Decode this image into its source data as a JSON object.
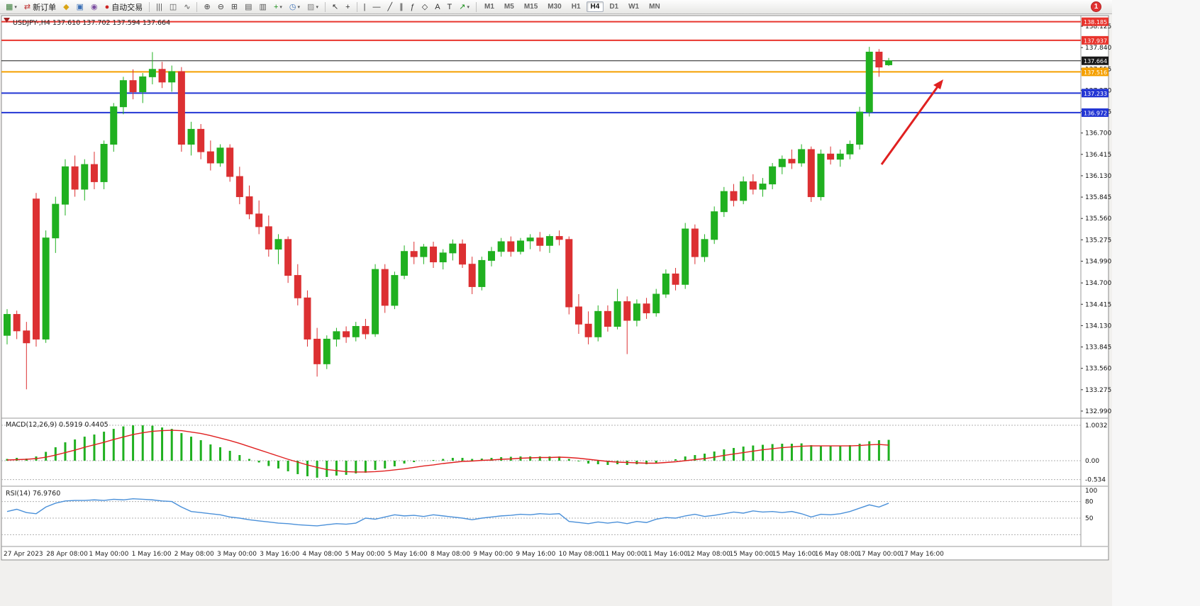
{
  "toolbar": {
    "groups": [
      {
        "items": [
          {
            "name": "new-chart",
            "glyph": "▦",
            "color": "#3a7d3a",
            "caret": true
          }
        ]
      },
      {
        "items": [
          {
            "name": "new-order",
            "glyph": "⇄",
            "color": "#c03333",
            "label": "新订单"
          }
        ]
      },
      {
        "items": [
          {
            "name": "metaeditor",
            "glyph": "◆",
            "color": "#d9a414"
          },
          {
            "name": "strategy-tester",
            "glyph": "▣",
            "color": "#3b6fb5"
          },
          {
            "name": "community",
            "glyph": "◉",
            "color": "#7a4da0"
          }
        ]
      },
      {
        "items": [
          {
            "name": "auto-trading",
            "glyph": "●",
            "color": "#cc2222",
            "label": "自动交易"
          }
        ]
      },
      {
        "sep": true,
        "items": [
          {
            "name": "bar-chart",
            "glyph": "|||",
            "color": "#555"
          },
          {
            "name": "candlestick-chart",
            "glyph": "◫",
            "color": "#555"
          },
          {
            "name": "line-chart",
            "glyph": "∿",
            "color": "#555"
          }
        ]
      },
      {
        "sep": true,
        "items": [
          {
            "name": "zoom-in",
            "glyph": "⊕",
            "color": "#444"
          },
          {
            "name": "zoom-out",
            "glyph": "⊖",
            "color": "#444"
          }
        ]
      },
      {
        "items": [
          {
            "name": "tile-windows",
            "glyph": "⊞",
            "color": "#444"
          }
        ]
      },
      {
        "items": [
          {
            "name": "auto-arrange",
            "glyph": "▤",
            "color": "#555"
          },
          {
            "name": "cascade",
            "glyph": "▥",
            "color": "#555"
          }
        ]
      },
      {
        "items": [
          {
            "name": "indicators",
            "glyph": "+",
            "color": "#1a8f1a",
            "caret": true
          },
          {
            "name": "periods",
            "glyph": "◷",
            "color": "#3b6fb5",
            "caret": true
          },
          {
            "name": "templates",
            "glyph": "▨",
            "color": "#888",
            "caret": true
          }
        ]
      },
      {
        "sep": true,
        "items": [
          {
            "name": "cursor",
            "glyph": "↖",
            "color": "#333"
          },
          {
            "name": "crosshair",
            "glyph": "+",
            "color": "#333"
          }
        ]
      },
      {
        "sep": true,
        "items": [
          {
            "name": "vertical-line",
            "glyph": "|",
            "color": "#333"
          },
          {
            "name": "horizontal-line",
            "glyph": "—",
            "color": "#333"
          },
          {
            "name": "trendline",
            "glyph": "╱",
            "color": "#333"
          },
          {
            "name": "channel",
            "glyph": "∥",
            "color": "#333"
          },
          {
            "name": "fibonacci",
            "glyph": "ƒ",
            "color": "#333"
          },
          {
            "name": "shapes",
            "glyph": "◇",
            "color": "#333"
          },
          {
            "name": "text",
            "glyph": "A",
            "color": "#333"
          },
          {
            "name": "text-label",
            "glyph": "T",
            "color": "#333"
          },
          {
            "name": "arrows",
            "glyph": "↗",
            "color": "#1a8f1a",
            "caret": true
          }
        ]
      }
    ],
    "timeframes": [
      "M1",
      "M5",
      "M15",
      "M30",
      "H1",
      "H4",
      "D1",
      "W1",
      "MN"
    ],
    "active_timeframe": "H4",
    "notification_badge": "1"
  },
  "chart": {
    "title": "USDJPY-,H4",
    "ohlc_text": "137.610 137.702 137.594 137.664",
    "price_axis": [
      "138.125",
      "137.840",
      "137.555",
      "137.270",
      "136.985",
      "136.700",
      "136.415",
      "136.130",
      "135.845",
      "135.560",
      "135.275",
      "134.990",
      "134.700",
      "134.415",
      "134.130",
      "133.845",
      "133.560",
      "133.275",
      "132.990"
    ],
    "hlines": [
      {
        "name": "resistance-line-upper",
        "price": 138.185,
        "label": "138.185",
        "color": "#e8352e",
        "width": 2
      },
      {
        "name": "resistance-line",
        "price": 137.937,
        "label": "137.937",
        "color": "#e8352e",
        "width": 2
      },
      {
        "name": "current-price-line",
        "price": 137.664,
        "label": "137.664",
        "color": "#1a1a1a",
        "width": 1
      },
      {
        "name": "orange-level-line",
        "price": 137.516,
        "label": "137.516",
        "color": "#f5a000",
        "width": 2
      },
      {
        "name": "support-line-1",
        "price": 137.233,
        "label": "137.233",
        "color": "#2336d4",
        "width": 2
      },
      {
        "name": "support-line-2",
        "price": 136.972,
        "label": "136.972",
        "color": "#2336d4",
        "width": 2
      }
    ],
    "colors": {
      "bull": "#20b020",
      "bear": "#dc3032",
      "macd_bar": "#20b020",
      "macd_signal": "#e02020",
      "rsi_line": "#4a90d9",
      "arrow": "#e02020"
    }
  },
  "chart_data": {
    "type": "candlestick",
    "symbol": "USDJPY-",
    "timeframe": "H4",
    "candles": [
      [
        134.0,
        134.35,
        133.88,
        134.28
      ],
      [
        134.28,
        134.33,
        133.95,
        134.06
      ],
      [
        134.06,
        134.18,
        133.28,
        133.9
      ],
      [
        135.82,
        135.9,
        133.85,
        133.95
      ],
      [
        133.95,
        135.4,
        133.9,
        135.3
      ],
      [
        135.3,
        135.85,
        135.1,
        135.75
      ],
      [
        135.75,
        136.35,
        135.6,
        136.25
      ],
      [
        136.25,
        136.4,
        135.85,
        135.95
      ],
      [
        135.95,
        136.35,
        135.8,
        136.28
      ],
      [
        136.28,
        136.45,
        135.95,
        136.05
      ],
      [
        136.05,
        136.6,
        135.95,
        136.55
      ],
      [
        136.55,
        137.1,
        136.45,
        137.05
      ],
      [
        137.05,
        137.45,
        136.95,
        137.4
      ],
      [
        137.4,
        137.55,
        137.15,
        137.25
      ],
      [
        137.25,
        137.5,
        137.1,
        137.45
      ],
      [
        137.45,
        137.78,
        137.35,
        137.55
      ],
      [
        137.55,
        137.65,
        137.3,
        137.38
      ],
      [
        137.38,
        137.6,
        137.25,
        137.52
      ],
      [
        137.52,
        137.58,
        136.45,
        136.55
      ],
      [
        136.55,
        136.85,
        136.4,
        136.75
      ],
      [
        136.75,
        136.82,
        136.35,
        136.45
      ],
      [
        136.45,
        136.6,
        136.2,
        136.3
      ],
      [
        136.3,
        136.55,
        136.25,
        136.5
      ],
      [
        136.5,
        136.55,
        136.05,
        136.12
      ],
      [
        136.12,
        136.25,
        135.75,
        135.85
      ],
      [
        135.85,
        136.0,
        135.55,
        135.62
      ],
      [
        135.62,
        135.8,
        135.35,
        135.45
      ],
      [
        135.45,
        135.6,
        135.05,
        135.15
      ],
      [
        135.15,
        135.35,
        134.95,
        135.28
      ],
      [
        135.28,
        135.32,
        134.7,
        134.8
      ],
      [
        134.8,
        134.95,
        134.4,
        134.5
      ],
      [
        134.5,
        134.6,
        133.85,
        133.95
      ],
      [
        133.95,
        134.1,
        133.45,
        133.62
      ],
      [
        133.62,
        134.0,
        133.55,
        133.95
      ],
      [
        133.95,
        134.1,
        133.85,
        134.05
      ],
      [
        134.05,
        134.12,
        133.9,
        133.98
      ],
      [
        133.98,
        134.18,
        133.92,
        134.12
      ],
      [
        134.12,
        134.22,
        133.95,
        134.02
      ],
      [
        134.02,
        134.95,
        133.98,
        134.88
      ],
      [
        134.88,
        134.95,
        134.3,
        134.4
      ],
      [
        134.4,
        134.85,
        134.35,
        134.8
      ],
      [
        134.8,
        135.2,
        134.75,
        135.12
      ],
      [
        135.12,
        135.25,
        134.95,
        135.05
      ],
      [
        135.05,
        135.22,
        134.95,
        135.18
      ],
      [
        135.18,
        135.25,
        134.9,
        134.98
      ],
      [
        134.98,
        135.15,
        134.88,
        135.1
      ],
      [
        135.1,
        135.28,
        135.0,
        135.22
      ],
      [
        135.22,
        135.28,
        134.9,
        134.95
      ],
      [
        134.95,
        135.05,
        134.55,
        134.65
      ],
      [
        134.65,
        135.05,
        134.6,
        135.0
      ],
      [
        135.0,
        135.18,
        134.92,
        135.12
      ],
      [
        135.12,
        135.3,
        135.05,
        135.25
      ],
      [
        135.25,
        135.32,
        135.05,
        135.12
      ],
      [
        135.12,
        135.3,
        135.08,
        135.26
      ],
      [
        135.26,
        135.35,
        135.15,
        135.3
      ],
      [
        135.3,
        135.38,
        135.12,
        135.2
      ],
      [
        135.2,
        135.35,
        135.1,
        135.32
      ],
      [
        135.32,
        135.4,
        135.2,
        135.28
      ],
      [
        135.28,
        135.32,
        134.28,
        134.38
      ],
      [
        134.38,
        134.55,
        134.02,
        134.15
      ],
      [
        134.15,
        134.32,
        133.88,
        133.98
      ],
      [
        133.98,
        134.4,
        133.92,
        134.32
      ],
      [
        134.32,
        134.4,
        134.05,
        134.12
      ],
      [
        134.12,
        134.62,
        134.08,
        134.45
      ],
      [
        134.45,
        134.52,
        133.75,
        134.2
      ],
      [
        134.2,
        134.48,
        134.12,
        134.42
      ],
      [
        134.42,
        134.5,
        134.22,
        134.3
      ],
      [
        134.3,
        134.62,
        134.25,
        134.55
      ],
      [
        134.55,
        134.88,
        134.5,
        134.82
      ],
      [
        134.82,
        134.9,
        134.6,
        134.68
      ],
      [
        134.68,
        135.5,
        134.62,
        135.42
      ],
      [
        135.42,
        135.48,
        134.95,
        135.05
      ],
      [
        135.05,
        135.35,
        134.98,
        135.28
      ],
      [
        135.28,
        135.72,
        135.22,
        135.65
      ],
      [
        135.65,
        135.98,
        135.58,
        135.92
      ],
      [
        135.92,
        136.02,
        135.72,
        135.8
      ],
      [
        135.8,
        136.12,
        135.75,
        136.05
      ],
      [
        136.05,
        136.15,
        135.88,
        135.95
      ],
      [
        135.95,
        136.1,
        135.85,
        136.02
      ],
      [
        136.02,
        136.3,
        135.95,
        136.25
      ],
      [
        136.25,
        136.4,
        136.15,
        136.35
      ],
      [
        136.35,
        136.48,
        136.22,
        136.3
      ],
      [
        136.3,
        136.55,
        136.25,
        136.48
      ],
      [
        136.48,
        136.52,
        135.78,
        135.85
      ],
      [
        135.85,
        136.48,
        135.8,
        136.42
      ],
      [
        136.42,
        136.52,
        136.28,
        136.35
      ],
      [
        136.35,
        136.48,
        136.25,
        136.42
      ],
      [
        136.42,
        136.6,
        136.35,
        136.55
      ],
      [
        136.55,
        137.05,
        136.48,
        136.98
      ],
      [
        136.98,
        137.85,
        136.92,
        137.78
      ],
      [
        137.78,
        137.82,
        137.45,
        137.58
      ],
      [
        137.61,
        137.702,
        137.594,
        137.664
      ]
    ],
    "macd": {
      "label": "MACD(12,26,9)",
      "main_value": "0.5919",
      "signal_value": "0.4405",
      "scale": [
        "1.0032",
        "0.00",
        "-0.534"
      ],
      "histogram": [
        0.05,
        0.08,
        0.06,
        0.12,
        0.25,
        0.38,
        0.52,
        0.6,
        0.68,
        0.74,
        0.82,
        0.9,
        0.97,
        1.0,
        1.0,
        0.99,
        0.94,
        0.9,
        0.78,
        0.68,
        0.58,
        0.46,
        0.38,
        0.28,
        0.16,
        0.05,
        -0.05,
        -0.15,
        -0.22,
        -0.3,
        -0.38,
        -0.44,
        -0.48,
        -0.46,
        -0.42,
        -0.4,
        -0.36,
        -0.34,
        -0.26,
        -0.22,
        -0.16,
        -0.08,
        -0.04,
        0.0,
        0.02,
        0.05,
        0.08,
        0.08,
        0.05,
        0.06,
        0.08,
        0.1,
        0.11,
        0.12,
        0.12,
        0.12,
        0.12,
        0.12,
        0.05,
        -0.02,
        -0.08,
        -0.1,
        -0.12,
        -0.1,
        -0.12,
        -0.1,
        -0.1,
        -0.06,
        0.0,
        0.04,
        0.12,
        0.16,
        0.2,
        0.26,
        0.32,
        0.36,
        0.4,
        0.43,
        0.45,
        0.47,
        0.48,
        0.48,
        0.49,
        0.44,
        0.42,
        0.42,
        0.42,
        0.44,
        0.48,
        0.55,
        0.58,
        0.59
      ],
      "signal": [
        0.02,
        0.03,
        0.04,
        0.06,
        0.1,
        0.16,
        0.23,
        0.3,
        0.38,
        0.45,
        0.52,
        0.6,
        0.67,
        0.74,
        0.79,
        0.83,
        0.85,
        0.86,
        0.85,
        0.81,
        0.77,
        0.71,
        0.64,
        0.57,
        0.49,
        0.4,
        0.31,
        0.22,
        0.13,
        0.04,
        -0.04,
        -0.12,
        -0.19,
        -0.25,
        -0.28,
        -0.31,
        -0.32,
        -0.32,
        -0.31,
        -0.29,
        -0.26,
        -0.23,
        -0.19,
        -0.15,
        -0.12,
        -0.08,
        -0.05,
        -0.02,
        -0.01,
        0.01,
        0.02,
        0.04,
        0.05,
        0.07,
        0.08,
        0.09,
        0.09,
        0.1,
        0.09,
        0.07,
        0.04,
        0.01,
        -0.02,
        -0.04,
        -0.05,
        -0.06,
        -0.07,
        -0.07,
        -0.05,
        -0.03,
        0.0,
        0.03,
        0.06,
        0.1,
        0.15,
        0.19,
        0.23,
        0.27,
        0.31,
        0.34,
        0.37,
        0.39,
        0.41,
        0.42,
        0.42,
        0.42,
        0.42,
        0.42,
        0.43,
        0.45,
        0.46,
        0.44
      ]
    },
    "rsi": {
      "label": "RSI(14)",
      "value": "76.9760",
      "scale": [
        "100",
        "80",
        "50"
      ],
      "levels": [
        80,
        50,
        20
      ],
      "values": [
        62,
        66,
        60,
        58,
        70,
        77,
        81,
        82,
        82,
        83,
        82,
        84,
        83,
        85,
        84,
        83,
        81,
        80,
        70,
        62,
        60,
        58,
        56,
        52,
        50,
        47,
        45,
        43,
        41,
        40,
        38,
        37,
        36,
        38,
        40,
        39,
        41,
        50,
        48,
        52,
        56,
        54,
        55,
        53,
        56,
        54,
        52,
        50,
        47,
        50,
        52,
        54,
        55,
        57,
        56,
        58,
        57,
        58,
        44,
        42,
        40,
        43,
        41,
        43,
        40,
        44,
        42,
        48,
        51,
        50,
        54,
        57,
        53,
        55,
        58,
        61,
        59,
        63,
        61,
        62,
        60,
        62,
        58,
        52,
        57,
        56,
        58,
        62,
        68,
        74,
        70,
        77
      ]
    },
    "time_axis": [
      "27 Apr 2023",
      "28 Apr 08:00",
      "1 May 00:00",
      "1 May 16:00",
      "2 May 08:00",
      "3 May 00:00",
      "3 May 16:00",
      "4 May 08:00",
      "5 May 00:00",
      "5 May 16:00",
      "8 May 08:00",
      "9 May 00:00",
      "9 May 16:00",
      "10 May 08:00",
      "11 May 00:00",
      "11 May 16:00",
      "12 May 08:00",
      "15 May 00:00",
      "15 May 16:00",
      "16 May 08:00",
      "17 May 00:00",
      "17 May 16:00"
    ]
  }
}
